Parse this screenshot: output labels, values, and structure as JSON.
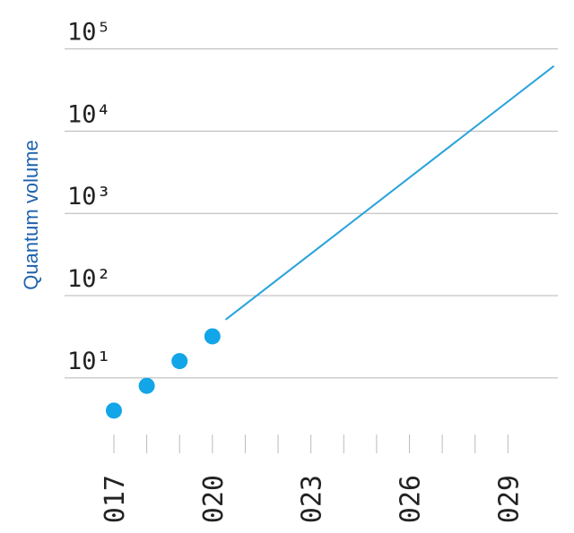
{
  "chart_data": {
    "type": "scatter",
    "y_label": "Quantum volume",
    "log_y": true,
    "grid": true,
    "x": [
      2017,
      2018,
      2019,
      2020
    ],
    "values": [
      4,
      8,
      16,
      32
    ],
    "color": "#12a5e8",
    "projection": {
      "x": [
        2020.4,
        2030.4
      ],
      "values": [
        51,
        62000
      ],
      "color": "#29a3dc"
    },
    "xlim": [
      2015.58,
      2030.52
    ],
    "ylim": [
      2,
      200000
    ],
    "xticks": [
      {
        "value": 2017,
        "label": "017"
      },
      {
        "value": 2020,
        "label": "020"
      },
      {
        "value": 2023,
        "label": "023"
      },
      {
        "value": 2026,
        "label": "026"
      },
      {
        "value": 2029,
        "label": "029"
      }
    ],
    "xminor": [
      2018,
      2019,
      2021,
      2022,
      2024,
      2025,
      2027,
      2028
    ],
    "yticks": [
      {
        "value": 10,
        "label": "10¹"
      },
      {
        "value": 100,
        "label": "10²"
      },
      {
        "value": 1000,
        "label": "10³"
      },
      {
        "value": 10000,
        "label": "10⁴"
      },
      {
        "value": 100000,
        "label": "10⁵"
      }
    ]
  }
}
